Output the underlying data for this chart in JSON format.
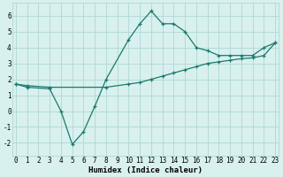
{
  "xlabel": "Humidex (Indice chaleur)",
  "line1_x": [
    0,
    1,
    3,
    4,
    5,
    6,
    7,
    8,
    10,
    11,
    12,
    13,
    14,
    15,
    16,
    17,
    18,
    19,
    20,
    21,
    22,
    23
  ],
  "line1_y": [
    1.7,
    1.5,
    1.4,
    0.0,
    -2.1,
    -1.3,
    0.3,
    2.0,
    4.5,
    5.5,
    6.3,
    5.5,
    5.5,
    5.0,
    4.0,
    3.8,
    3.5,
    3.5,
    3.5,
    3.5,
    4.0,
    4.3
  ],
  "line2_x": [
    0,
    1,
    3,
    8,
    10,
    11,
    12,
    13,
    14,
    15,
    16,
    17,
    18,
    19,
    20,
    21,
    22,
    23
  ],
  "line2_y": [
    1.7,
    1.6,
    1.5,
    1.5,
    1.7,
    1.8,
    2.0,
    2.2,
    2.4,
    2.6,
    2.8,
    3.0,
    3.1,
    3.2,
    3.3,
    3.35,
    3.5,
    4.3
  ],
  "line_color": "#1a7a6e",
  "bg_color": "#d8f0ee",
  "grid_color": "#b0d8d4",
  "ylim": [
    -2.8,
    6.8
  ],
  "xlim": [
    -0.3,
    23.3
  ],
  "yticks": [
    -2,
    -1,
    0,
    1,
    2,
    3,
    4,
    5,
    6
  ],
  "xtick_labels": [
    "0",
    "1",
    "2",
    "3",
    "4",
    "5",
    "6",
    "7",
    "8",
    "9",
    "10",
    "11",
    "12",
    "13",
    "14",
    "15",
    "16",
    "17",
    "18",
    "19",
    "20",
    "21",
    "22",
    "23"
  ],
  "title_fontsize": 6.5,
  "axis_fontsize": 6.5,
  "tick_fontsize": 5.5
}
